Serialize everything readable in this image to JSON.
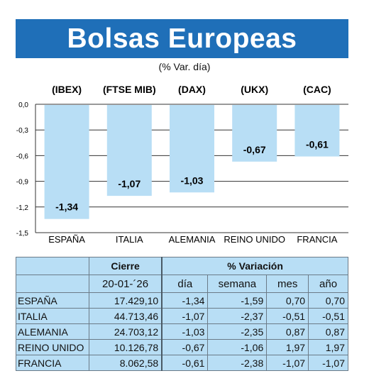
{
  "header": {
    "title": "Bolsas Europeas",
    "subtitle": "(% Var. día)"
  },
  "chart_data": {
    "type": "bar",
    "categories": [
      "ESPAÑA",
      "ITALIA",
      "ALEMANIA",
      "REINO UNIDO",
      "FRANCIA"
    ],
    "index_labels": [
      "(IBEX)",
      "(FTSE MIB)",
      "(DAX)",
      "(UKX)",
      "(CAC)"
    ],
    "values": [
      -1.34,
      -1.07,
      -1.03,
      -0.67,
      -0.61
    ],
    "value_labels": [
      "-1,34",
      "-1,07",
      "-1,03",
      "-0,67",
      "-0,61"
    ],
    "ylim": [
      -1.5,
      0
    ],
    "yticks": [
      0,
      -0.3,
      -0.6,
      -0.9,
      -1.2,
      -1.5
    ],
    "ytick_labels": [
      "0,0",
      "-0,3",
      "-0,6",
      "-0,9",
      "-1,2",
      "-1,5"
    ],
    "grid": true,
    "bar_color": "#b8def5"
  },
  "table": {
    "group_headers": {
      "close": "Cierre",
      "variation": "% Variación"
    },
    "columns": {
      "date": "20-01-´26",
      "day": "día",
      "week": "semana",
      "month": "mes",
      "year": "año"
    },
    "rows": [
      {
        "country": "ESPAÑA",
        "close": "17.429,10",
        "day": "-1,34",
        "week": "-1,59",
        "month": "0,70",
        "year": "0,70"
      },
      {
        "country": "ITALIA",
        "close": "44.713,46",
        "day": "-1,07",
        "week": "-2,37",
        "month": "-0,51",
        "year": "-0,51"
      },
      {
        "country": "ALEMANIA",
        "close": "24.703,12",
        "day": "-1,03",
        "week": "-2,35",
        "month": "0,87",
        "year": "0,87"
      },
      {
        "country": "REINO UNIDO",
        "close": "10.126,78",
        "day": "-0,67",
        "week": "-1,06",
        "month": "1,97",
        "year": "1,97"
      },
      {
        "country": "FRANCIA",
        "close": "8.062,58",
        "day": "-0,61",
        "week": "-2,38",
        "month": "-1,07",
        "year": "-1,07"
      }
    ]
  }
}
